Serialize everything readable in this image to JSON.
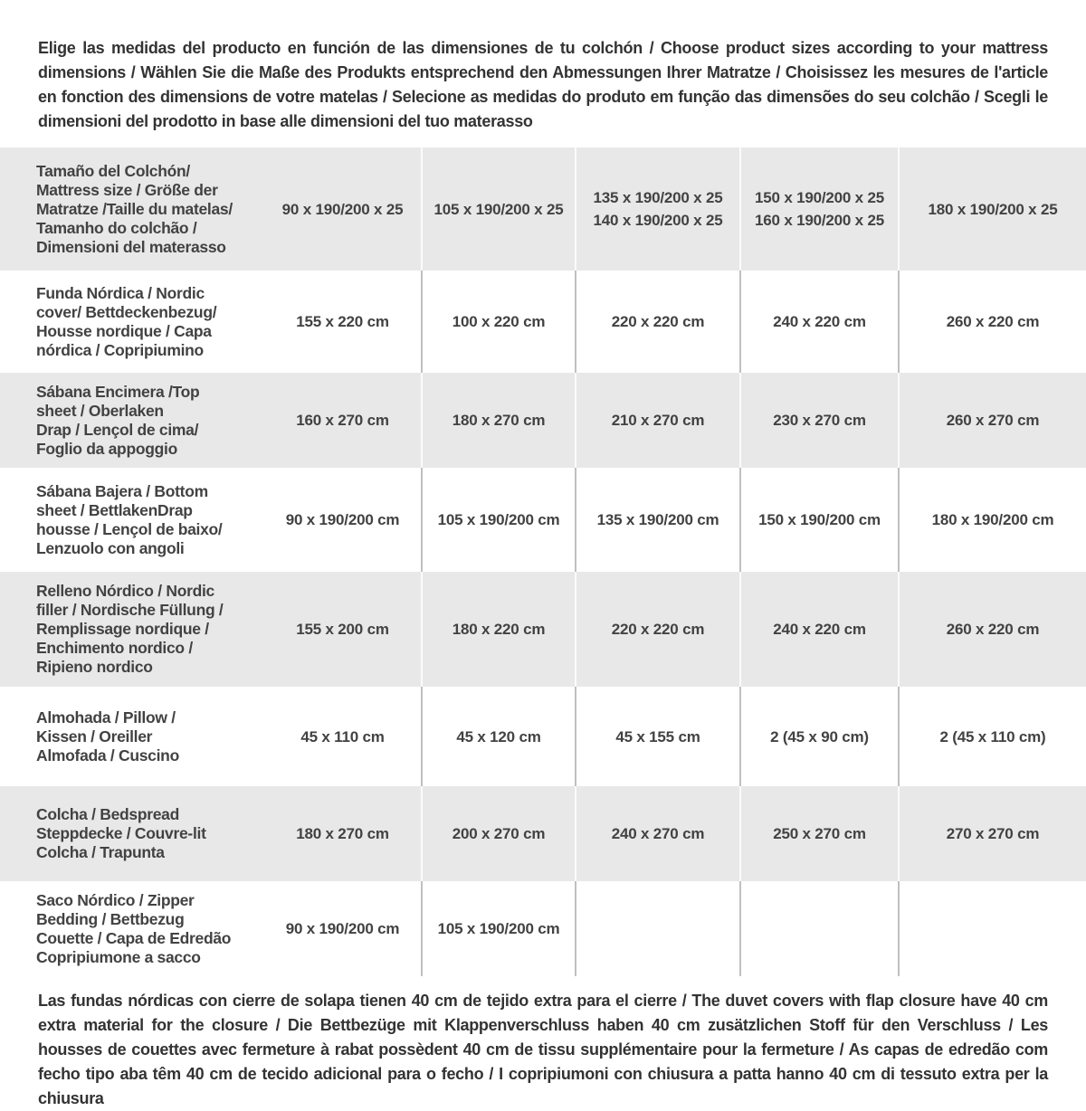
{
  "intro_text": "Elige las medidas del producto en función de las dimensiones de tu colchón / Choose product sizes according to your mattress dimensions / Wählen Sie die Maße des Produkts entsprechend den Abmessungen Ihrer Matratze / Choisissez les mesures de l'article en fonction des dimensions de votre matelas / Selecione as medidas do produto em função das dimensões do seu colchão / Scegli le dimensioni del prodotto in base alle dimensioni del tuo materasso",
  "footnote_text": "Las fundas nórdicas con cierre de solapa tienen 40 cm de tejido extra para el cierre / The duvet covers with flap closure have 40 cm extra material for the closure / Die Bettbezüge mit Klappenverschluss haben 40 cm zusätzlichen Stoff für den Verschluss / Les housses de couettes avec fermeture à rabat possèdent 40 cm de tissu supplémentaire pour la fermeture / As capas de edredão com fecho tipo aba têm 40 cm de tecido adicional para o fecho / I copripiumoni con chiusura a patta hanno 40 cm di tessuto extra per la chiusura",
  "colors": {
    "row_shade": "#e8e8e8",
    "text": "#3d3d3d",
    "separator_on_white": "#c0c0c0",
    "separator_on_shaded": "#fbfbfb"
  },
  "table": {
    "header": {
      "label": "Tamaño del Colchón/\nMattress size / Größe der\nMatratze /Taille du matelas/\nTamanho do colchão /\nDimensioni del materasso",
      "values": [
        "90 x 190/200 x 25",
        "105 x 190/200 x 25",
        "135 x 190/200 x 25\n140 x 190/200 x 25",
        "150 x 190/200 x 25\n160 x 190/200 x 25",
        "180 x 190/200 x 25"
      ]
    },
    "rows": [
      {
        "label": "Funda Nórdica / Nordic\ncover/ Bettdeckenbezug/\nHousse nordique / Capa\nnórdica / Copripiumino",
        "values": [
          "155 x 220 cm",
          "100 x 220 cm",
          "220 x 220 cm",
          "240 x 220 cm",
          "260 x 220 cm"
        ]
      },
      {
        "label": "Sábana Encimera /Top\nsheet / Oberlaken\nDrap / Lençol de cima/\nFoglio da appoggio",
        "values": [
          "160 x 270 cm",
          "180 x 270 cm",
          "210 x 270 cm",
          "230 x 270 cm",
          "260 x 270 cm"
        ]
      },
      {
        "label": "Sábana Bajera / Bottom\nsheet / BettlakenDrap\nhousse / Lençol de baixo/\nLenzuolo con angoli",
        "values": [
          "90 x 190/200 cm",
          "105 x 190/200 cm",
          "135 x 190/200 cm",
          "150 x 190/200 cm",
          "180 x 190/200 cm"
        ]
      },
      {
        "label": "Relleno Nórdico / Nordic\nfiller / Nordische Füllung /\nRemplissage nordique /\nEnchimento nordico /\nRipieno nordico",
        "values": [
          "155 x 200 cm",
          "180 x 220 cm",
          "220 x 220 cm",
          "240 x 220 cm",
          "260 x 220 cm"
        ]
      },
      {
        "label": "Almohada / Pillow /\nKissen / Oreiller\nAlmofada / Cuscino",
        "values": [
          "45 x 110 cm",
          "45 x 120 cm",
          "45 x 155 cm",
          "2 (45 x 90 cm)",
          "2 (45 x 110 cm)"
        ]
      },
      {
        "label": "Colcha / Bedspread\nSteppdecke / Couvre-lit\nColcha / Trapunta",
        "values": [
          "180 x 270 cm",
          "200 x 270 cm",
          "240 x 270 cm",
          "250 x 270 cm",
          "270 x 270 cm"
        ]
      },
      {
        "label": "Saco Nórdico / Zipper\nBedding / Bettbezug\nCouette / Capa de Edredão\nCopripiumone a sacco",
        "values": [
          "90 x 190/200 cm",
          "105 x 190/200 cm",
          "",
          "",
          ""
        ]
      }
    ]
  }
}
